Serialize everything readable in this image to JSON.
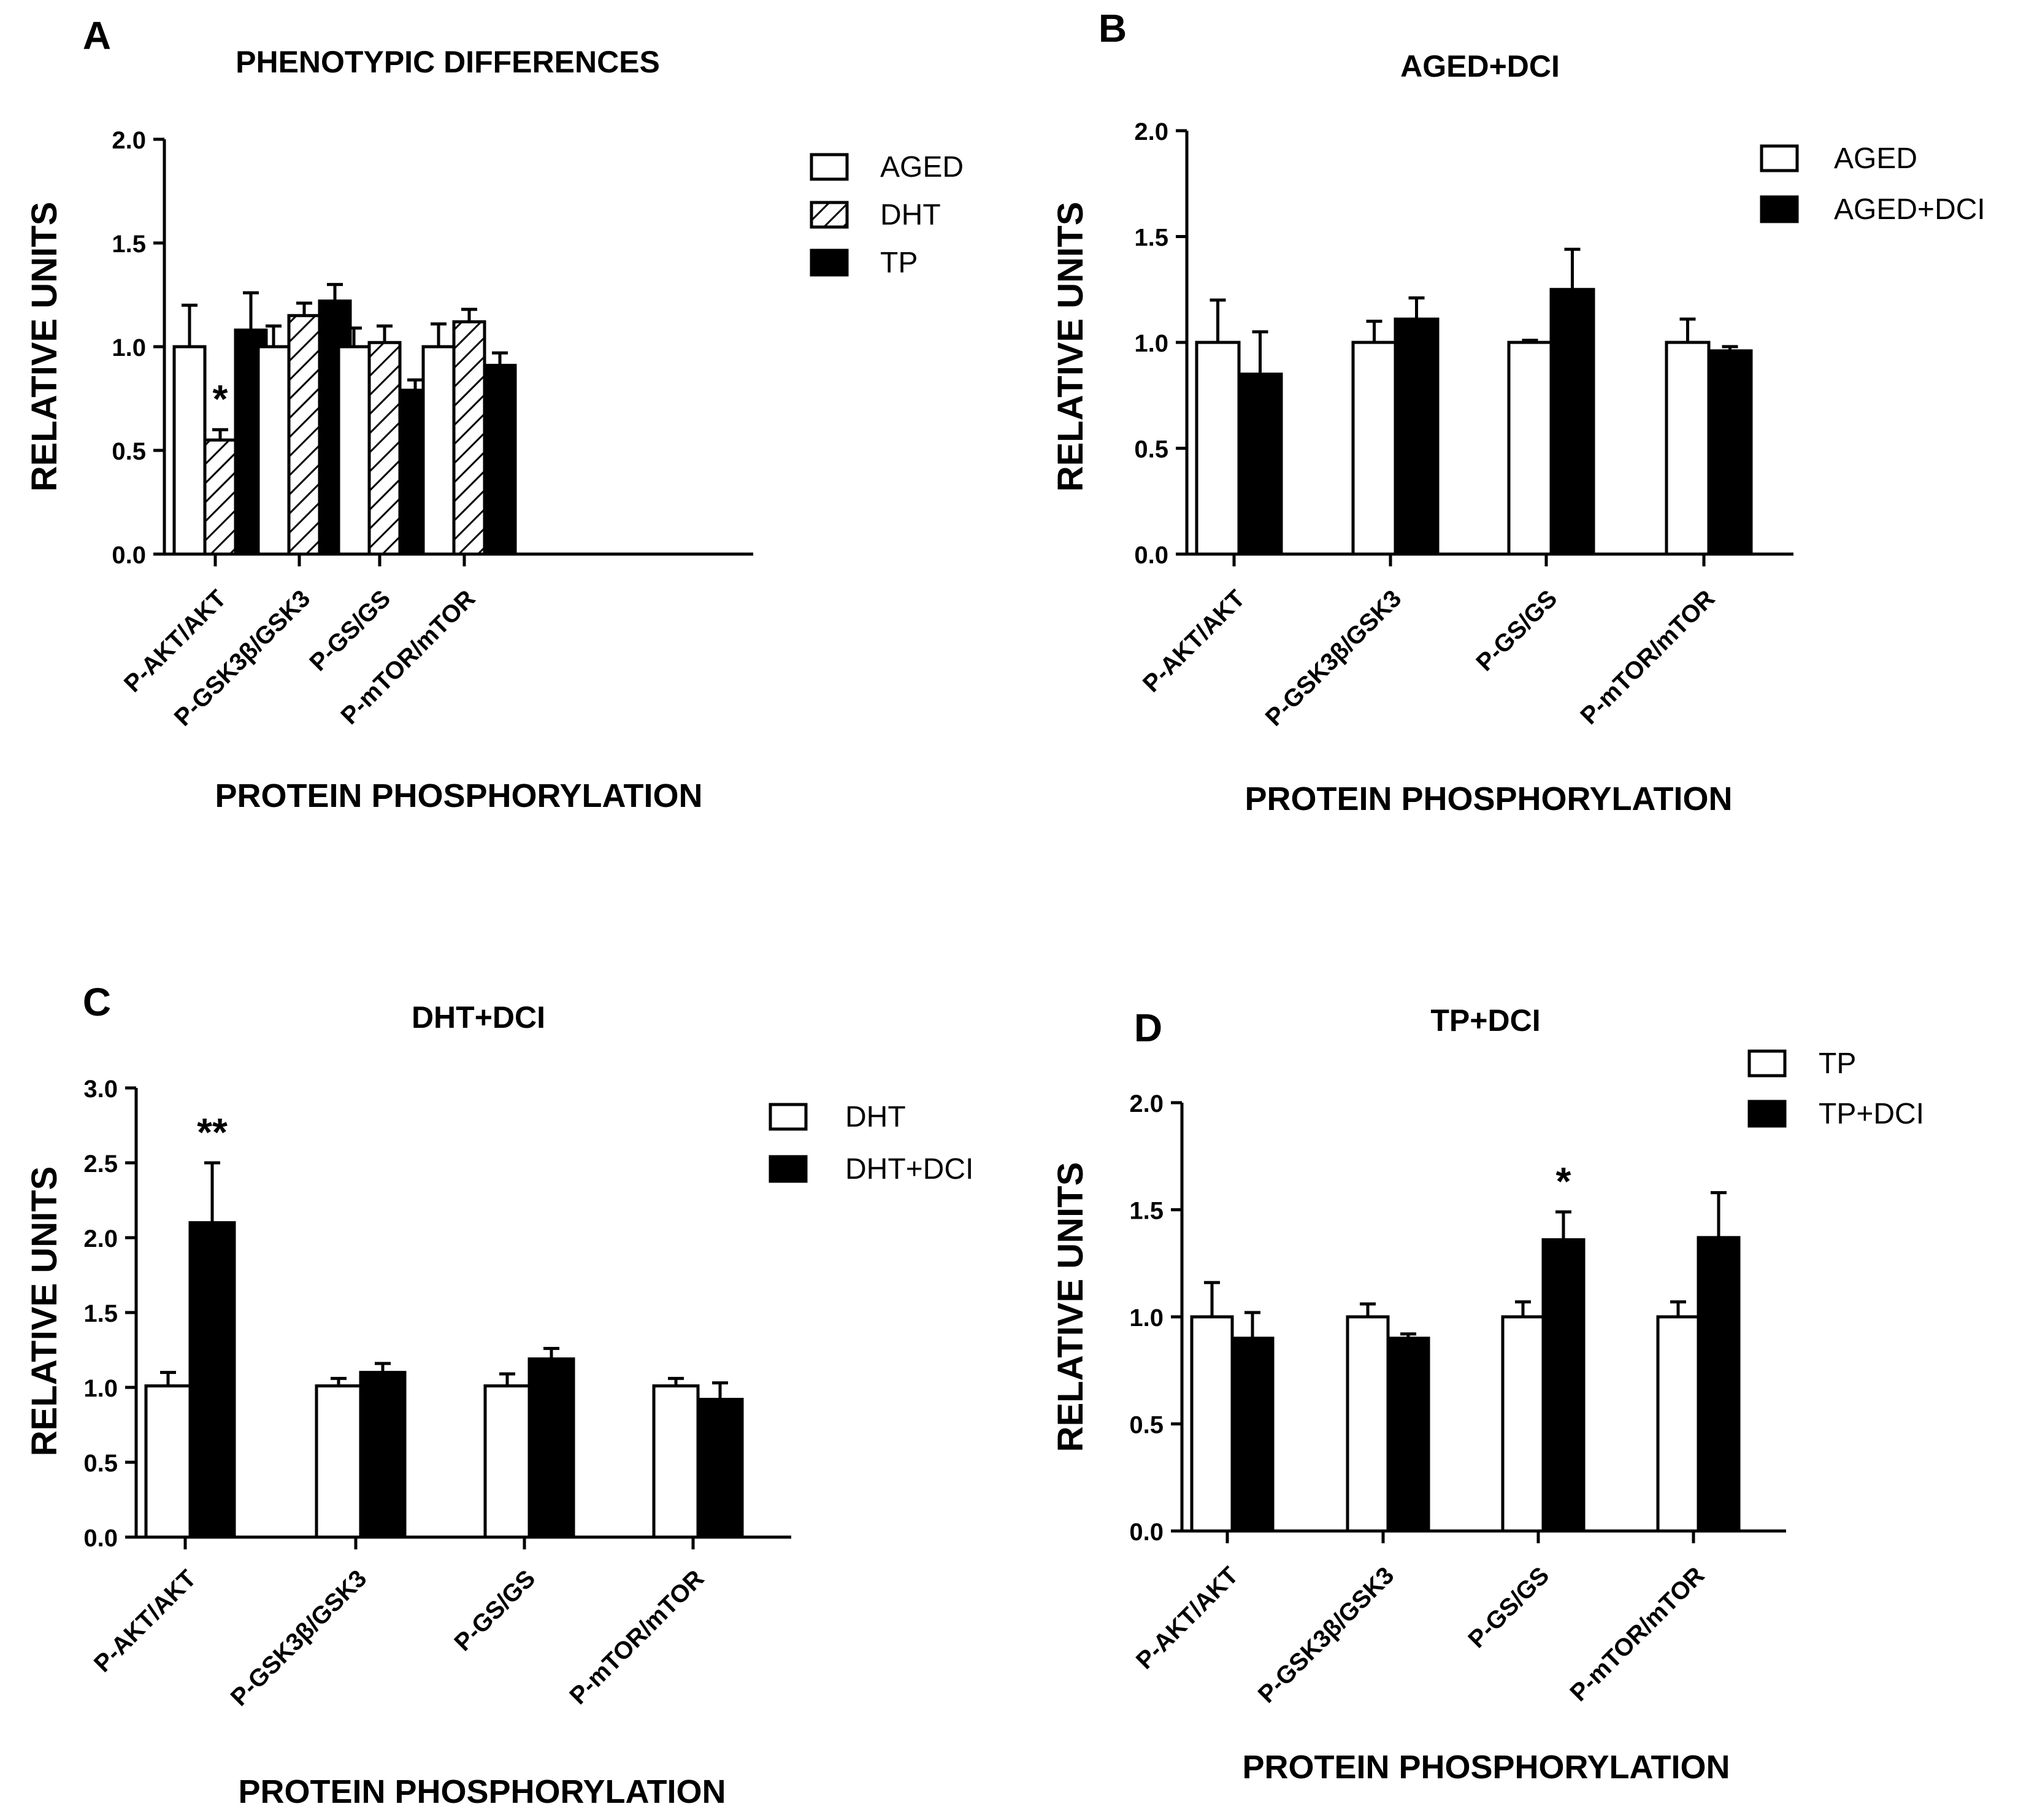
{
  "chart_data": [
    {
      "type": "bar",
      "panel_label": "A",
      "title": "PHENOTYPIC DIFFERENCES",
      "xlabel": "PROTEIN PHOSPHORYLATION",
      "ylabel": "RELATIVE UNITS",
      "ylim": [
        0,
        2.0
      ],
      "yticks": [
        "0.0",
        "0.5",
        "1.0",
        "1.5",
        "2.0"
      ],
      "categories": [
        "P-AKT/AKT",
        "P-GSK3β/GSK3",
        "P-GS/GS",
        "P-mTOR/mTOR"
      ],
      "series": [
        {
          "name": "AGED",
          "style": "white",
          "values": [
            1.0,
            1.0,
            1.0,
            1.0
          ],
          "errors": [
            0.2,
            0.1,
            0.09,
            0.11
          ]
        },
        {
          "name": "DHT",
          "style": "hatch",
          "values": [
            0.55,
            1.15,
            1.02,
            1.12
          ],
          "errors": [
            0.05,
            0.06,
            0.08,
            0.06
          ]
        },
        {
          "name": "TP",
          "style": "black",
          "values": [
            1.08,
            1.22,
            0.79,
            0.91
          ],
          "errors": [
            0.18,
            0.08,
            0.05,
            0.06
          ]
        }
      ],
      "annotations": [
        {
          "category": 0,
          "series": 1,
          "text": "*"
        }
      ],
      "legend_position": "top-right"
    },
    {
      "type": "bar",
      "panel_label": "B",
      "title": "AGED+DCI",
      "xlabel": "PROTEIN PHOSPHORYLATION",
      "ylabel": "RELATIVE UNITS",
      "ylim": [
        0,
        2.0
      ],
      "yticks": [
        "0.0",
        "0.5",
        "1.0",
        "1.5",
        "2.0"
      ],
      "categories": [
        "P-AKT/AKT",
        "P-GSK3β/GSK3",
        "P-GS/GS",
        "P-mTOR/mTOR"
      ],
      "series": [
        {
          "name": "AGED",
          "style": "white",
          "values": [
            1.0,
            1.0,
            1.0,
            1.0
          ],
          "errors": [
            0.2,
            0.1,
            0.01,
            0.11
          ]
        },
        {
          "name": "AGED+DCI",
          "style": "black",
          "values": [
            0.85,
            1.11,
            1.25,
            0.96
          ],
          "errors": [
            0.2,
            0.1,
            0.19,
            0.02
          ]
        }
      ],
      "annotations": [],
      "legend_position": "top-right"
    },
    {
      "type": "bar",
      "panel_label": "C",
      "title": "DHT+DCI",
      "xlabel": "PROTEIN PHOSPHORYLATION",
      "ylabel": "RELATIVE UNITS",
      "ylim": [
        0,
        3.0
      ],
      "yticks": [
        "0.0",
        "0.5",
        "1.0",
        "1.5",
        "2.0",
        "2.5",
        "3.0"
      ],
      "categories": [
        "P-AKT/AKT",
        "P-GSK3β/GSK3",
        "P-GS/GS",
        "P-mTOR/mTOR"
      ],
      "series": [
        {
          "name": "DHT",
          "style": "white",
          "values": [
            1.01,
            1.01,
            1.01,
            1.01
          ],
          "errors": [
            0.09,
            0.05,
            0.08,
            0.05
          ]
        },
        {
          "name": "DHT+DCI",
          "style": "black",
          "values": [
            2.1,
            1.1,
            1.19,
            0.92
          ],
          "errors": [
            0.4,
            0.06,
            0.07,
            0.11
          ]
        }
      ],
      "annotations": [
        {
          "category": 0,
          "series": 1,
          "text": "**"
        }
      ],
      "legend_position": "top-right"
    },
    {
      "type": "bar",
      "panel_label": "D",
      "title": "TP+DCI",
      "xlabel": "PROTEIN PHOSPHORYLATION",
      "ylabel": "RELATIVE UNITS",
      "ylim": [
        0,
        2.0
      ],
      "yticks": [
        "0.0",
        "0.5",
        "1.0",
        "1.5",
        "2.0"
      ],
      "categories": [
        "P-AKT/AKT",
        "P-GSK3β/GSK3",
        "P-GS/GS",
        "P-mTOR/mTOR"
      ],
      "series": [
        {
          "name": "TP",
          "style": "white",
          "values": [
            1.0,
            1.0,
            1.0,
            1.0
          ],
          "errors": [
            0.16,
            0.06,
            0.07,
            0.07
          ]
        },
        {
          "name": "TP+DCI",
          "style": "black",
          "values": [
            0.9,
            0.9,
            1.36,
            1.37
          ],
          "errors": [
            0.12,
            0.02,
            0.13,
            0.21
          ]
        }
      ],
      "annotations": [
        {
          "category": 2,
          "series": 1,
          "text": "*"
        }
      ],
      "legend_position": "top-right"
    }
  ]
}
